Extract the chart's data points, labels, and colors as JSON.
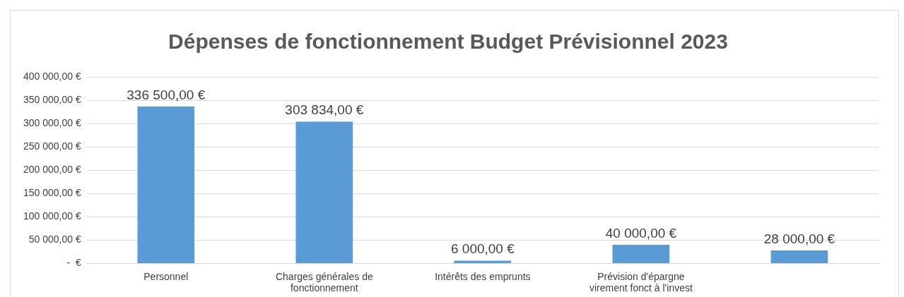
{
  "chart_data": {
    "type": "bar",
    "title": "Dépenses de fonctionnement Budget Prévisionnel 2023",
    "categories": [
      "Personnel",
      "Charges générales de fonctionnement",
      "Intérêts des emprunts",
      "Prévision d'épargne virement fonct à l'invest",
      null
    ],
    "values": [
      336500,
      303834,
      6000,
      40000,
      28000
    ],
    "color": "#5b9bd5",
    "value_labels": [
      "336 500,00 €",
      "303 834,00 €",
      "6 000,00 €",
      "40 000,00 €",
      "28 000,00 €"
    ],
    "ylim": [
      0,
      400000
    ],
    "yticks": [
      {
        "value": 0,
        "label": "-  €"
      },
      {
        "value": 50000,
        "label": "50 000,00 €"
      },
      {
        "value": 100000,
        "label": "100 000,00 €"
      },
      {
        "value": 150000,
        "label": "150 000,00 €"
      },
      {
        "value": 200000,
        "label": "200 000,00 €"
      },
      {
        "value": 250000,
        "label": "250 000,00 €"
      },
      {
        "value": 300000,
        "label": "300 000,00 €"
      },
      {
        "value": 350000,
        "label": "350 000,00 €"
      },
      {
        "value": 400000,
        "label": "400 000,00 €"
      }
    ],
    "grid": "y"
  }
}
